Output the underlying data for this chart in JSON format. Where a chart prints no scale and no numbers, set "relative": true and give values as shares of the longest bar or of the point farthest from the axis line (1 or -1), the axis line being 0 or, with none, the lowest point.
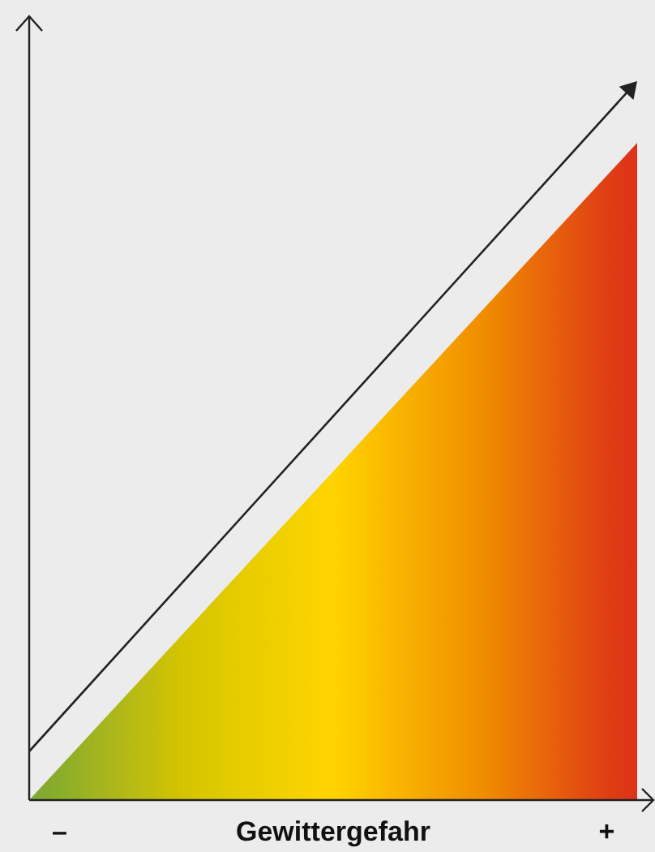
{
  "chart_data": {
    "type": "area",
    "relative": true,
    "xlabel": "Gewittergefahr",
    "categories": [
      null,
      "–",
      null,
      null,
      null,
      null,
      null,
      null,
      null,
      null,
      null,
      null,
      null,
      null,
      null,
      null,
      null,
      null,
      null,
      "+",
      null
    ],
    "series": [
      {
        "values": [
          0,
          0.05,
          0.1,
          0.15,
          0.2,
          0.25,
          0.3,
          0.35,
          0.4,
          0.45,
          0.5,
          0.55,
          0.6,
          0.65,
          0.7,
          0.75,
          0.8,
          0.85,
          0.9,
          0.95,
          1
        ],
        "colors": [
          "#7fa832",
          "#8aad2a",
          "#9eb322",
          "#b0b819",
          "#c2be0d",
          "#d4c400",
          "#dcc800",
          "#e6cc00",
          "#eecf00",
          "#f7d200",
          "#ffd400",
          "#fcc500",
          "#f9b600",
          "#f6a800",
          "#f39a00",
          "#f08c00",
          "#ec7806",
          "#e8650b",
          "#e45110",
          "#e03e14",
          "#dc3218"
        ]
      }
    ]
  }
}
